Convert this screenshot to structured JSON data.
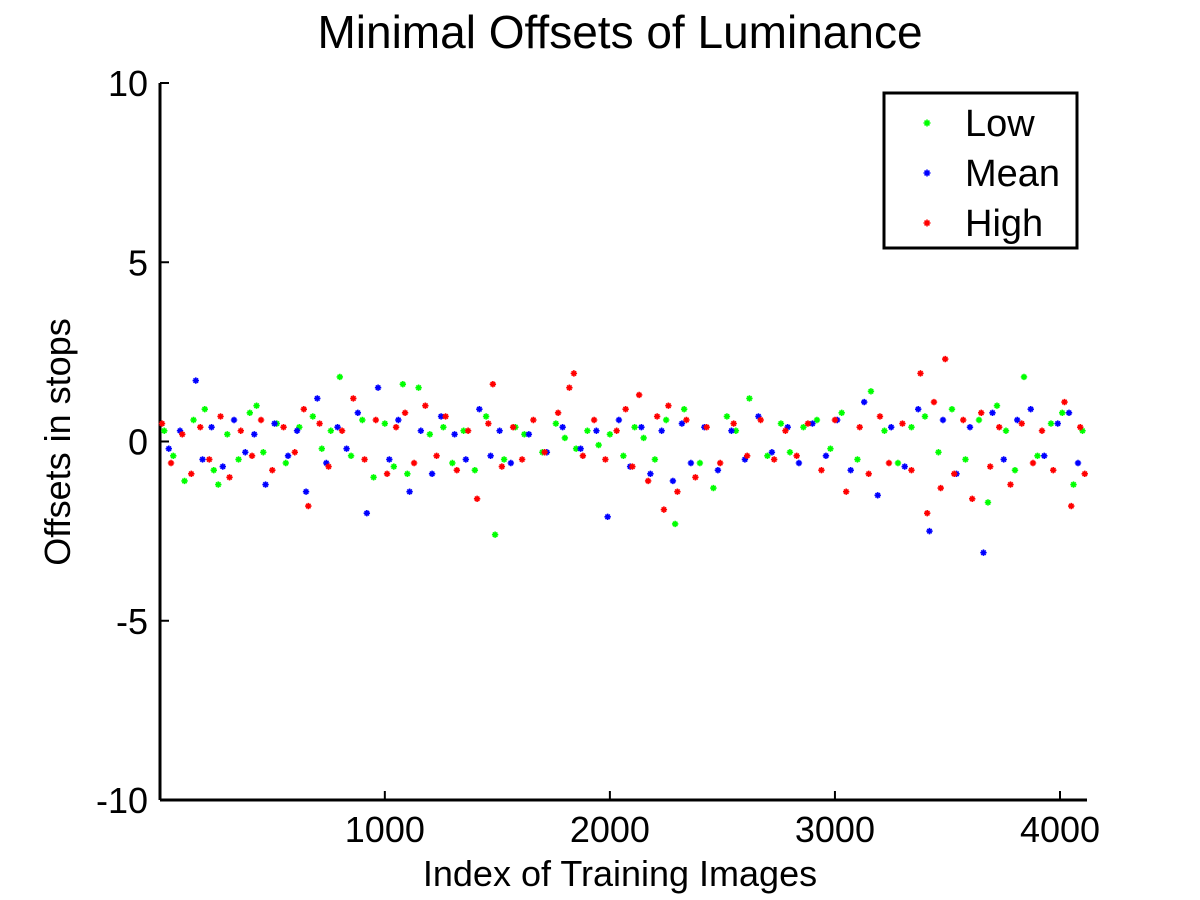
{
  "chart_data": {
    "type": "scatter",
    "title": "Minimal Offsets of Luminance",
    "xlabel": "Index of Training Images",
    "ylabel": "Offsets in stops",
    "xlim": [
      1,
      4120
    ],
    "ylim": [
      -10,
      10
    ],
    "xticks": [
      1000,
      2000,
      3000,
      4000
    ],
    "yticks": [
      10,
      5,
      0,
      -5,
      -10
    ],
    "grid": false,
    "legend": {
      "placement": "top-right"
    },
    "series": [
      {
        "name": "Low",
        "color": "#00ff00",
        "marker": "asterisk",
        "x": [
          20,
          60,
          110,
          150,
          200,
          240,
          260,
          300,
          350,
          400,
          430,
          460,
          520,
          560,
          620,
          680,
          720,
          760,
          800,
          850,
          900,
          950,
          1000,
          1040,
          1080,
          1100,
          1150,
          1200,
          1260,
          1300,
          1350,
          1400,
          1450,
          1490,
          1530,
          1580,
          1620,
          1700,
          1760,
          1800,
          1850,
          1900,
          1950,
          2000,
          2060,
          2110,
          2150,
          2200,
          2250,
          2290,
          2330,
          2400,
          2460,
          2520,
          2560,
          2620,
          2700,
          2760,
          2800,
          2860,
          2920,
          2980,
          3030,
          3100,
          3160,
          3220,
          3280,
          3340,
          3400,
          3460,
          3520,
          3580,
          3640,
          3680,
          3720,
          3760,
          3800,
          3840,
          3900,
          3960,
          4010,
          4060,
          4100
        ],
        "y": [
          0.3,
          -0.4,
          -1.1,
          0.6,
          0.9,
          -0.8,
          -1.2,
          0.2,
          -0.5,
          0.8,
          1.0,
          -0.3,
          0.5,
          -0.6,
          0.4,
          0.7,
          -0.2,
          0.3,
          1.8,
          -0.4,
          0.6,
          -1.0,
          0.5,
          -0.7,
          1.6,
          -0.9,
          1.5,
          0.2,
          0.4,
          -0.6,
          0.3,
          -0.8,
          0.7,
          -2.6,
          -0.5,
          0.4,
          0.2,
          -0.3,
          0.5,
          0.1,
          -0.2,
          0.3,
          -0.1,
          0.2,
          -0.4,
          0.4,
          0.1,
          -0.5,
          0.6,
          -2.3,
          0.9,
          -0.6,
          -1.3,
          0.7,
          0.3,
          1.2,
          -0.4,
          0.5,
          -0.3,
          0.4,
          0.6,
          -0.2,
          0.8,
          -0.5,
          1.4,
          0.3,
          -0.6,
          0.4,
          0.7,
          -0.3,
          0.9,
          -0.5,
          0.6,
          -1.7,
          1.0,
          0.3,
          -0.8,
          1.8,
          -0.4,
          0.5,
          0.8,
          -1.2,
          0.3
        ]
      },
      {
        "name": "Mean",
        "color": "#0000ff",
        "marker": "asterisk",
        "x": [
          40,
          90,
          160,
          190,
          230,
          280,
          330,
          380,
          420,
          470,
          510,
          570,
          610,
          650,
          700,
          740,
          790,
          830,
          880,
          920,
          970,
          1020,
          1060,
          1110,
          1160,
          1210,
          1250,
          1310,
          1360,
          1420,
          1470,
          1510,
          1560,
          1640,
          1720,
          1790,
          1870,
          1940,
          1990,
          2040,
          2090,
          2140,
          2180,
          2230,
          2280,
          2320,
          2360,
          2420,
          2480,
          2540,
          2600,
          2660,
          2720,
          2790,
          2840,
          2900,
          2960,
          3010,
          3070,
          3130,
          3190,
          3250,
          3310,
          3370,
          3420,
          3480,
          3540,
          3600,
          3660,
          3700,
          3750,
          3810,
          3870,
          3930,
          3990,
          4040,
          4080
        ],
        "y": [
          -0.2,
          0.3,
          1.7,
          -0.5,
          0.4,
          -0.7,
          0.6,
          -0.3,
          0.2,
          -1.2,
          0.5,
          -0.4,
          0.3,
          -1.4,
          1.2,
          -0.6,
          0.4,
          -0.2,
          0.8,
          -2.0,
          1.5,
          -0.5,
          0.6,
          -1.4,
          0.3,
          -0.9,
          0.7,
          0.2,
          -0.5,
          0.9,
          -0.4,
          0.3,
          -0.6,
          0.2,
          -0.3,
          0.4,
          -0.2,
          0.3,
          -2.1,
          0.6,
          -0.7,
          0.4,
          -0.9,
          0.3,
          -1.1,
          0.5,
          -0.6,
          0.4,
          -0.8,
          0.3,
          -0.5,
          0.7,
          -0.3,
          0.4,
          -0.6,
          0.5,
          -0.4,
          0.6,
          -0.8,
          1.1,
          -1.5,
          0.4,
          -0.7,
          0.9,
          -2.5,
          0.6,
          -0.9,
          0.4,
          -3.1,
          0.8,
          -0.5,
          0.6,
          0.9,
          -0.4,
          0.5,
          0.8,
          -0.6
        ]
      },
      {
        "name": "High",
        "color": "#ff0000",
        "marker": "asterisk",
        "x": [
          10,
          50,
          100,
          140,
          180,
          220,
          270,
          310,
          360,
          410,
          450,
          500,
          550,
          600,
          640,
          660,
          710,
          750,
          810,
          860,
          910,
          960,
          1010,
          1050,
          1090,
          1130,
          1180,
          1230,
          1270,
          1320,
          1370,
          1410,
          1460,
          1480,
          1520,
          1570,
          1610,
          1660,
          1710,
          1770,
          1820,
          1840,
          1880,
          1930,
          1980,
          2030,
          2070,
          2100,
          2130,
          2170,
          2210,
          2240,
          2260,
          2300,
          2340,
          2380,
          2430,
          2490,
          2550,
          2610,
          2670,
          2730,
          2780,
          2830,
          2880,
          2940,
          3000,
          3050,
          3110,
          3150,
          3200,
          3240,
          3300,
          3340,
          3380,
          3410,
          3440,
          3470,
          3490,
          3530,
          3570,
          3610,
          3650,
          3690,
          3730,
          3780,
          3830,
          3880,
          3920,
          3970,
          4020,
          4050,
          4090,
          4110
        ],
        "y": [
          0.5,
          -0.6,
          0.2,
          -0.9,
          0.4,
          -0.5,
          0.7,
          -1.0,
          0.3,
          -0.4,
          0.6,
          -0.8,
          0.4,
          -0.3,
          0.9,
          -1.8,
          0.5,
          -0.7,
          0.3,
          1.2,
          -0.5,
          0.6,
          -0.9,
          0.4,
          0.8,
          -0.6,
          1.0,
          -0.4,
          0.7,
          -0.8,
          0.3,
          -1.6,
          0.5,
          1.6,
          -0.7,
          0.4,
          -0.5,
          0.6,
          -0.3,
          0.8,
          1.5,
          1.9,
          -0.4,
          0.6,
          -0.5,
          0.3,
          0.9,
          -0.7,
          1.3,
          -1.1,
          0.7,
          -1.9,
          1.0,
          -1.4,
          0.6,
          -1.0,
          0.4,
          -0.6,
          0.5,
          -0.4,
          0.6,
          -0.5,
          0.3,
          -0.4,
          0.5,
          -0.8,
          0.6,
          -1.4,
          0.4,
          -0.9,
          0.7,
          -0.6,
          0.5,
          -0.8,
          1.9,
          -2.0,
          1.1,
          -1.3,
          2.3,
          -0.9,
          0.6,
          -1.6,
          0.8,
          -0.7,
          0.4,
          -1.2,
          0.5,
          -0.6,
          0.3,
          -0.8,
          1.1,
          -1.8,
          0.4,
          -0.9
        ]
      }
    ]
  }
}
